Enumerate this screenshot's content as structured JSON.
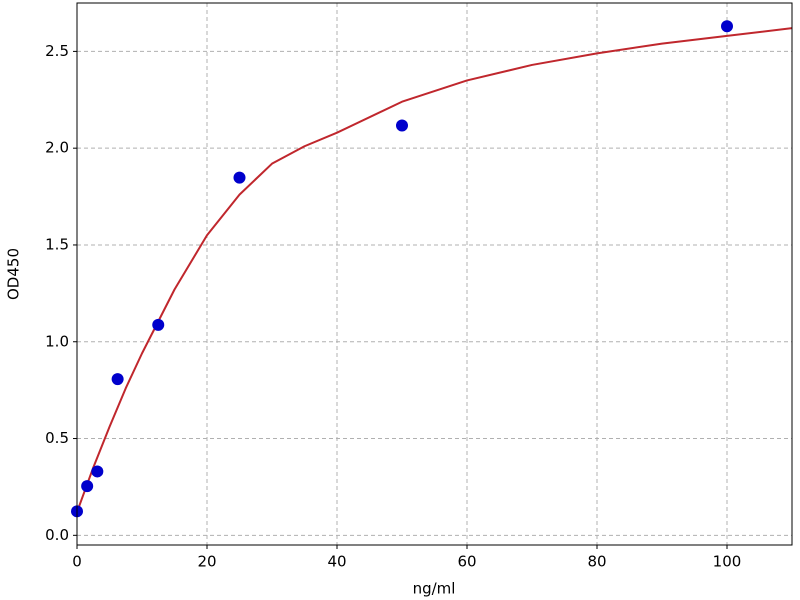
{
  "chart_data": {
    "type": "scatter",
    "xlabel": "ng/ml",
    "ylabel": "OD450",
    "xlim": [
      0,
      110
    ],
    "ylim": [
      -0.05,
      2.75
    ],
    "xticks": [
      0,
      20,
      40,
      60,
      80,
      100
    ],
    "yticks": [
      {
        "value": 0,
        "label": "0.0"
      },
      0.5,
      {
        "value": 1,
        "label": "1.0"
      },
      1.5,
      {
        "value": 2,
        "label": "2.0"
      },
      2.5
    ],
    "grid": true,
    "series": [
      {
        "type": "scatter",
        "color": "#0000cc",
        "x": [
          0,
          1.5625,
          3.125,
          6.25,
          12.5,
          25,
          50,
          100
        ],
        "values": [
          0.124,
          0.254,
          0.33,
          0.807,
          1.087,
          1.848,
          2.117,
          2.63
        ]
      },
      {
        "type": "line",
        "color": "#c0272d",
        "x": [
          0,
          2.5,
          5,
          7.5,
          10,
          15,
          20,
          25,
          30,
          35,
          40,
          50,
          60,
          70,
          80,
          90,
          100,
          110
        ],
        "values": [
          0.12,
          0.35,
          0.56,
          0.76,
          0.94,
          1.27,
          1.55,
          1.76,
          1.92,
          2.01,
          2.08,
          2.24,
          2.35,
          2.43,
          2.49,
          2.54,
          2.58,
          2.62
        ]
      }
    ]
  }
}
